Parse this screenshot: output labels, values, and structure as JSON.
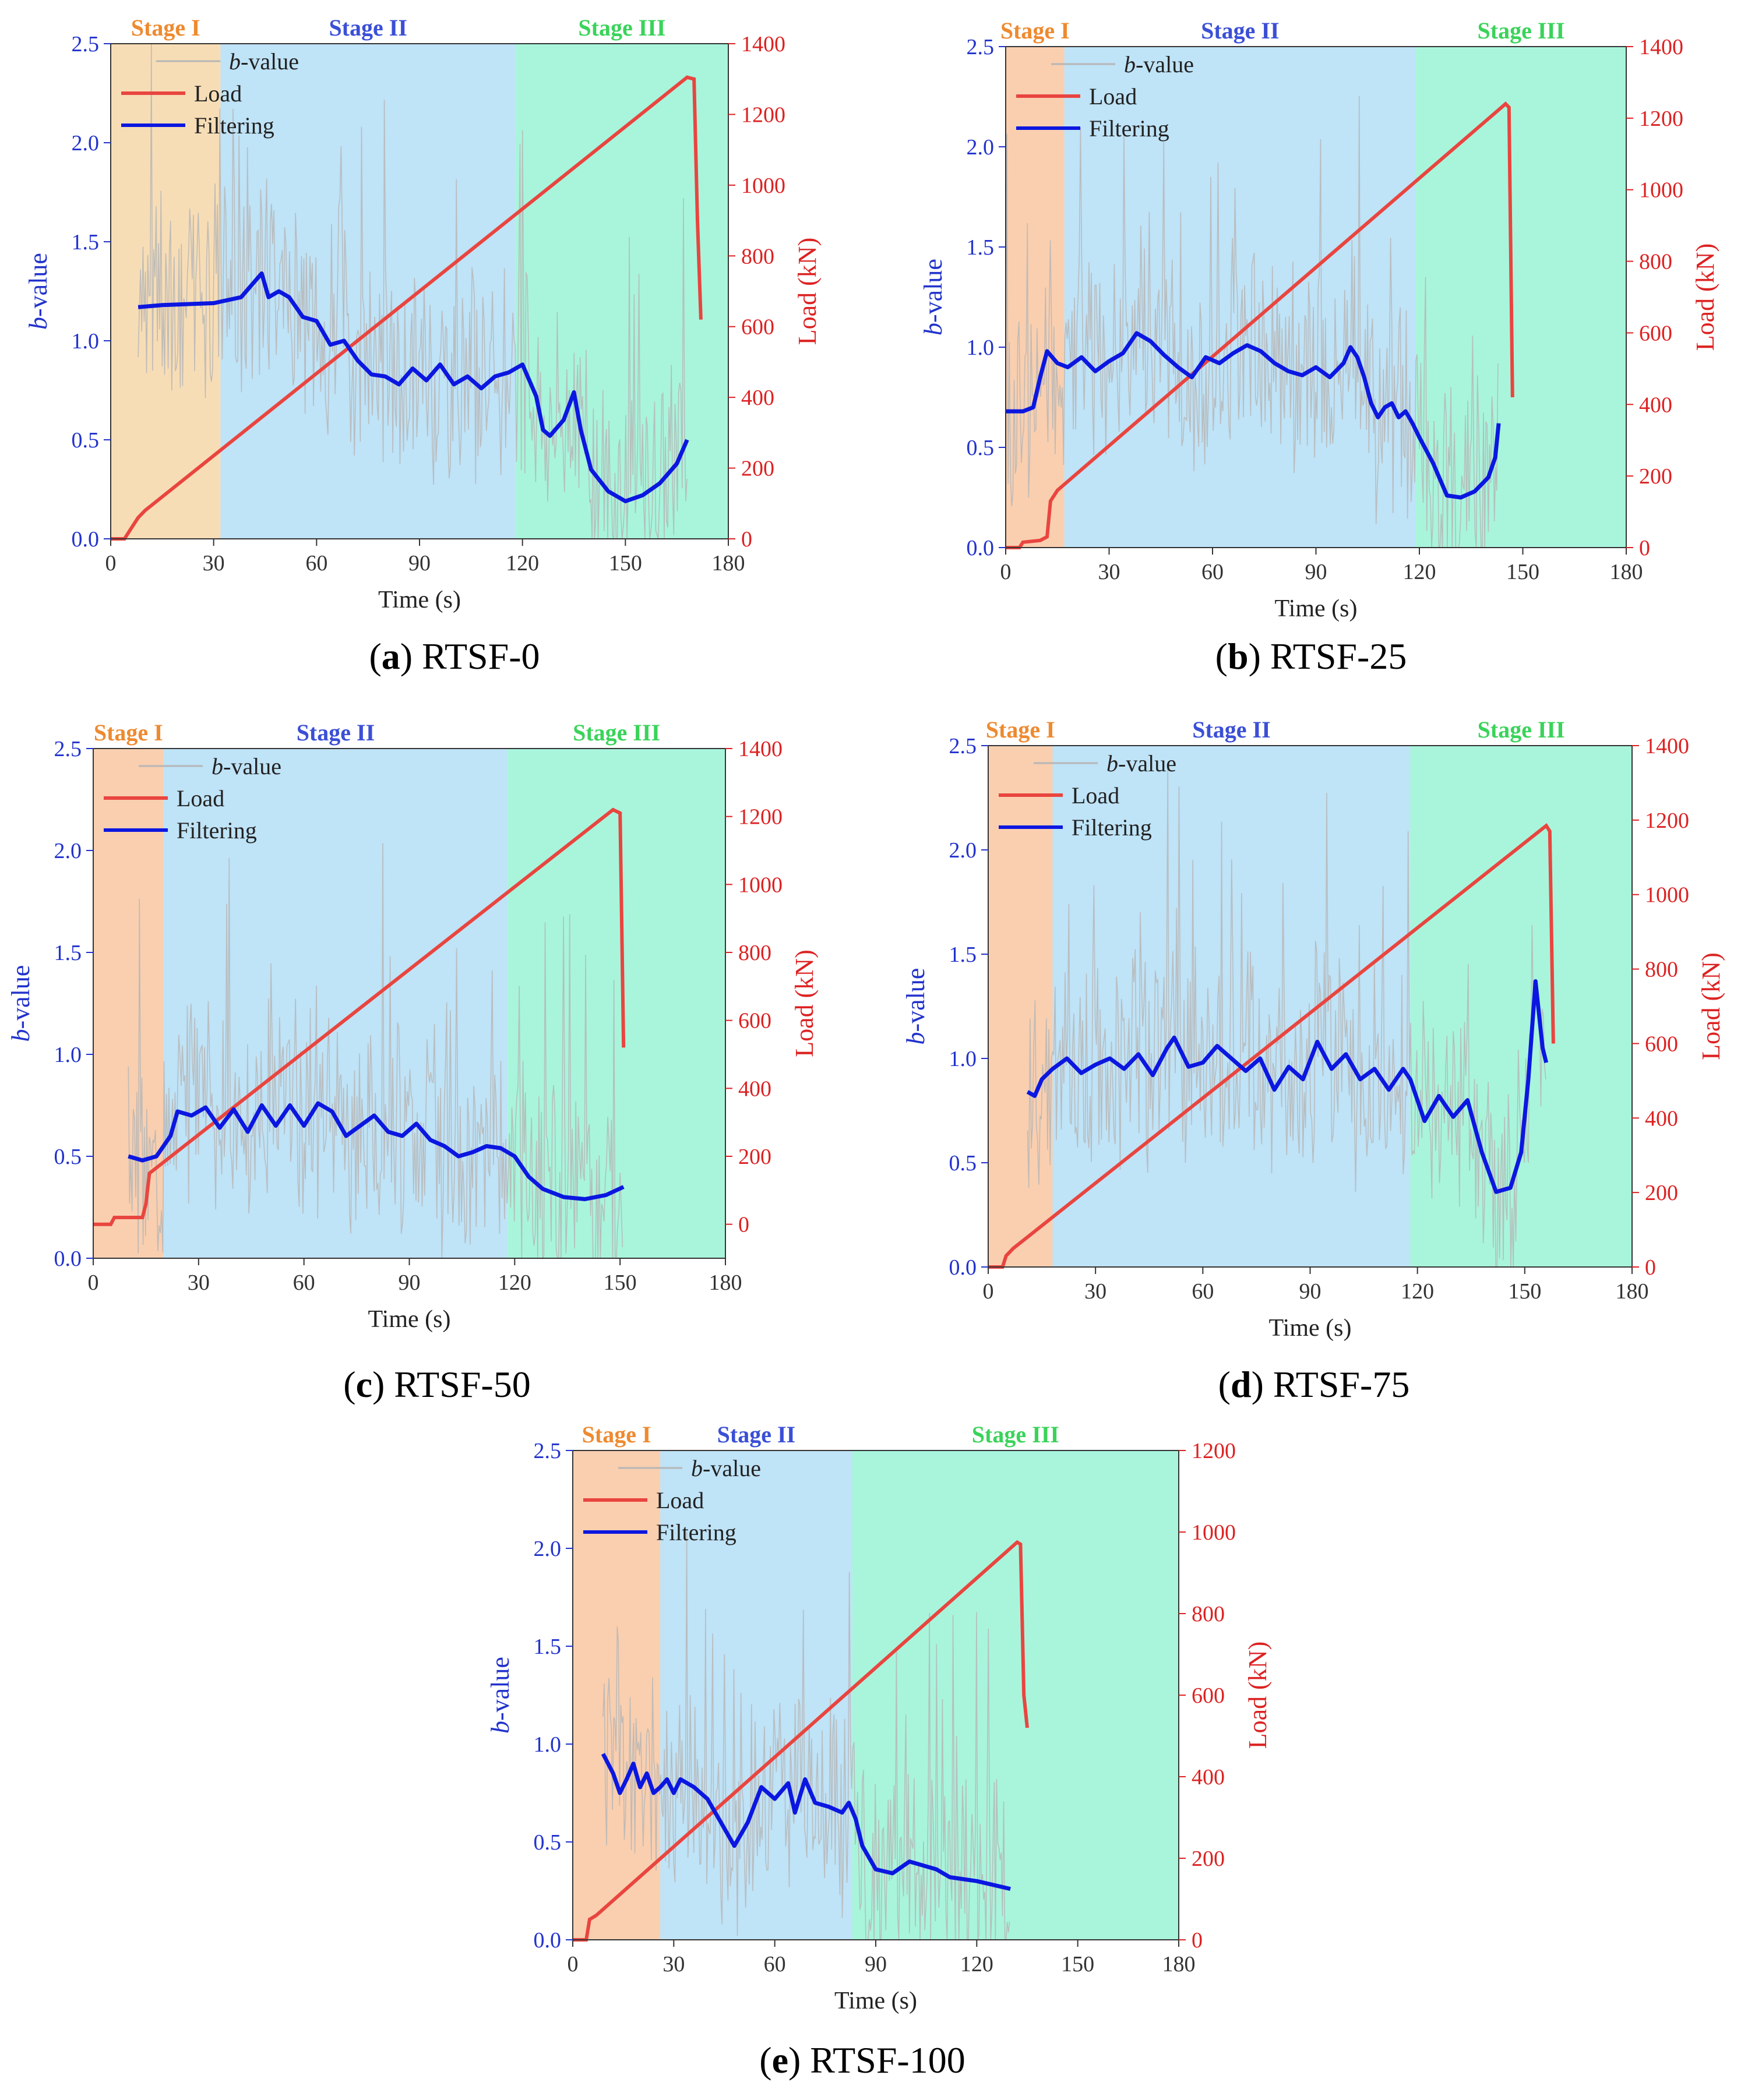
{
  "figure": {
    "legend": {
      "bvalue_italic": "b",
      "bvalue_suffix": "-value",
      "load": "Load",
      "filtering": "Filtering"
    },
    "axes": {
      "x_label": "Time (s)",
      "y_left_italic": "b",
      "y_left_suffix": "-value",
      "y_right_label": "Load (kN)"
    },
    "stage_labels": [
      "Stage I",
      "Stage II",
      "Stage III"
    ],
    "colors": {
      "stage1": "#f7ddb6",
      "stage1_alt": "#f9cfb0",
      "stage2": "#bfe3f7",
      "stage3": "#a8f5dc",
      "stage1_text": "#ee8a30",
      "stage2_text": "#3b4fd6",
      "stage3_text": "#3ad35a",
      "load": "#e9453f",
      "filtering": "#0b17e0",
      "raw": "#b6b6b6",
      "left_axis": "#2233cc",
      "right_axis": "#dd2222"
    }
  },
  "chart_data": [
    {
      "type": "line",
      "id": "a",
      "caption_letter": "a",
      "caption_name": "RTSF-0",
      "xlim": [
        0,
        180
      ],
      "xticks": [
        "0",
        "30",
        "60",
        "90",
        "120",
        "150",
        "180"
      ],
      "ylim_left": [
        0,
        2.5
      ],
      "yticks_left": [
        "0.0",
        "0.5",
        "1.0",
        "1.5",
        "2.0",
        "2.5"
      ],
      "ylim_right": [
        0,
        1400
      ],
      "yticks_right": [
        "0",
        "200",
        "400",
        "600",
        "800",
        "1000",
        "1200",
        "1400"
      ],
      "stages": [
        0,
        32,
        118,
        180
      ],
      "stage1_color": "stage1",
      "load": [
        [
          0,
          0
        ],
        [
          4,
          0
        ],
        [
          6,
          30
        ],
        [
          8,
          60
        ],
        [
          10,
          80
        ],
        [
          168,
          1305
        ],
        [
          170,
          1300
        ],
        [
          171,
          900
        ],
        [
          172,
          620
        ]
      ],
      "filtering": [
        [
          8,
          1.17
        ],
        [
          15,
          1.18
        ],
        [
          30,
          1.19
        ],
        [
          38,
          1.22
        ],
        [
          42,
          1.3
        ],
        [
          44,
          1.34
        ],
        [
          46,
          1.22
        ],
        [
          49,
          1.25
        ],
        [
          52,
          1.22
        ],
        [
          56,
          1.12
        ],
        [
          60,
          1.1
        ],
        [
          64,
          0.98
        ],
        [
          68,
          1.0
        ],
        [
          72,
          0.9
        ],
        [
          76,
          0.83
        ],
        [
          80,
          0.82
        ],
        [
          84,
          0.78
        ],
        [
          88,
          0.86
        ],
        [
          92,
          0.8
        ],
        [
          96,
          0.88
        ],
        [
          100,
          0.78
        ],
        [
          104,
          0.82
        ],
        [
          108,
          0.76
        ],
        [
          112,
          0.82
        ],
        [
          116,
          0.84
        ],
        [
          120,
          0.88
        ],
        [
          124,
          0.72
        ],
        [
          126,
          0.55
        ],
        [
          128,
          0.52
        ],
        [
          132,
          0.6
        ],
        [
          135,
          0.74
        ],
        [
          137,
          0.55
        ],
        [
          140,
          0.35
        ],
        [
          145,
          0.24
        ],
        [
          150,
          0.19
        ],
        [
          155,
          0.22
        ],
        [
          160,
          0.28
        ],
        [
          165,
          0.38
        ],
        [
          168,
          0.5
        ]
      ],
      "raw_range": [
        8,
        168
      ]
    },
    {
      "type": "line",
      "id": "b",
      "caption_letter": "b",
      "caption_name": "RTSF-25",
      "xlim": [
        0,
        180
      ],
      "xticks": [
        "0",
        "30",
        "60",
        "90",
        "120",
        "150",
        "180"
      ],
      "ylim_left": [
        0,
        2.5
      ],
      "yticks_left": [
        "0.0",
        "0.5",
        "1.0",
        "1.5",
        "2.0",
        "2.5"
      ],
      "ylim_right": [
        0,
        1400
      ],
      "yticks_right": [
        "0",
        "200",
        "400",
        "600",
        "800",
        "1000",
        "1200",
        "1400"
      ],
      "stages": [
        0,
        17,
        119,
        180
      ],
      "stage1_color": "stage1_alt",
      "load": [
        [
          0,
          0
        ],
        [
          4,
          0
        ],
        [
          5,
          15
        ],
        [
          10,
          20
        ],
        [
          12,
          30
        ],
        [
          13,
          130
        ],
        [
          15,
          160
        ],
        [
          145,
          1240
        ],
        [
          146,
          1230
        ],
        [
          147,
          420
        ]
      ],
      "filtering": [
        [
          0,
          0.68
        ],
        [
          5,
          0.68
        ],
        [
          8,
          0.7
        ],
        [
          10,
          0.85
        ],
        [
          12,
          0.98
        ],
        [
          15,
          0.92
        ],
        [
          18,
          0.9
        ],
        [
          22,
          0.95
        ],
        [
          26,
          0.88
        ],
        [
          30,
          0.93
        ],
        [
          34,
          0.97
        ],
        [
          38,
          1.07
        ],
        [
          42,
          1.03
        ],
        [
          46,
          0.96
        ],
        [
          50,
          0.9
        ],
        [
          54,
          0.85
        ],
        [
          58,
          0.95
        ],
        [
          62,
          0.92
        ],
        [
          66,
          0.97
        ],
        [
          70,
          1.01
        ],
        [
          74,
          0.98
        ],
        [
          78,
          0.92
        ],
        [
          82,
          0.88
        ],
        [
          86,
          0.86
        ],
        [
          90,
          0.9
        ],
        [
          94,
          0.85
        ],
        [
          98,
          0.92
        ],
        [
          100,
          1.0
        ],
        [
          102,
          0.95
        ],
        [
          104,
          0.85
        ],
        [
          106,
          0.72
        ],
        [
          108,
          0.65
        ],
        [
          110,
          0.7
        ],
        [
          112,
          0.72
        ],
        [
          114,
          0.65
        ],
        [
          116,
          0.68
        ],
        [
          118,
          0.62
        ],
        [
          120,
          0.55
        ],
        [
          124,
          0.42
        ],
        [
          128,
          0.26
        ],
        [
          132,
          0.25
        ],
        [
          136,
          0.28
        ],
        [
          140,
          0.35
        ],
        [
          142,
          0.45
        ],
        [
          143,
          0.62
        ]
      ],
      "raw_range": [
        0,
        143
      ]
    },
    {
      "type": "line",
      "id": "c",
      "caption_letter": "c",
      "caption_name": "RTSF-50",
      "xlim": [
        0,
        180
      ],
      "xticks": [
        "0",
        "30",
        "60",
        "90",
        "120",
        "150",
        "180"
      ],
      "ylim_left": [
        0,
        2.5
      ],
      "yticks_left": [
        "0.0",
        "0.5",
        "1.0",
        "1.5",
        "2.0",
        "2.5"
      ],
      "ylim_right": [
        -100,
        1400
      ],
      "yticks_right": [
        "0",
        "200",
        "400",
        "600",
        "800",
        "1000",
        "1200",
        "1400"
      ],
      "stages": [
        0,
        20,
        118,
        180
      ],
      "stage1_color": "stage1_alt",
      "load": [
        [
          0,
          0
        ],
        [
          5,
          0
        ],
        [
          6,
          20
        ],
        [
          14,
          20
        ],
        [
          15,
          60
        ],
        [
          16,
          150
        ],
        [
          148,
          1220
        ],
        [
          150,
          1210
        ],
        [
          151,
          520
        ]
      ],
      "filtering": [
        [
          10,
          0.5
        ],
        [
          14,
          0.48
        ],
        [
          18,
          0.5
        ],
        [
          22,
          0.6
        ],
        [
          24,
          0.72
        ],
        [
          28,
          0.7
        ],
        [
          32,
          0.74
        ],
        [
          36,
          0.64
        ],
        [
          40,
          0.73
        ],
        [
          44,
          0.62
        ],
        [
          48,
          0.75
        ],
        [
          52,
          0.65
        ],
        [
          56,
          0.75
        ],
        [
          60,
          0.65
        ],
        [
          64,
          0.76
        ],
        [
          68,
          0.72
        ],
        [
          72,
          0.6
        ],
        [
          76,
          0.65
        ],
        [
          80,
          0.7
        ],
        [
          84,
          0.62
        ],
        [
          88,
          0.6
        ],
        [
          92,
          0.66
        ],
        [
          96,
          0.58
        ],
        [
          100,
          0.55
        ],
        [
          104,
          0.5
        ],
        [
          108,
          0.52
        ],
        [
          112,
          0.55
        ],
        [
          116,
          0.54
        ],
        [
          120,
          0.5
        ],
        [
          124,
          0.4
        ],
        [
          128,
          0.34
        ],
        [
          134,
          0.3
        ],
        [
          140,
          0.29
        ],
        [
          146,
          0.31
        ],
        [
          151,
          0.35
        ]
      ],
      "raw_range": [
        10,
        151
      ]
    },
    {
      "type": "line",
      "id": "d",
      "caption_letter": "d",
      "caption_name": "RTSF-75",
      "xlim": [
        0,
        180
      ],
      "xticks": [
        "0",
        "30",
        "60",
        "90",
        "120",
        "150",
        "180"
      ],
      "ylim_left": [
        0,
        2.5
      ],
      "yticks_left": [
        "0.0",
        "0.5",
        "1.0",
        "1.5",
        "2.0",
        "2.5"
      ],
      "ylim_right": [
        0,
        1400
      ],
      "yticks_right": [
        "0",
        "200",
        "400",
        "600",
        "800",
        "1000",
        "1200",
        "1400"
      ],
      "stages": [
        0,
        18,
        118,
        180
      ],
      "stage1_color": "stage1_alt",
      "load": [
        [
          0,
          0
        ],
        [
          4,
          0
        ],
        [
          5,
          30
        ],
        [
          7,
          50
        ],
        [
          156,
          1185
        ],
        [
          157,
          1170
        ],
        [
          158,
          600
        ]
      ],
      "filtering": [
        [
          11,
          0.84
        ],
        [
          13,
          0.82
        ],
        [
          15,
          0.9
        ],
        [
          18,
          0.95
        ],
        [
          22,
          1.0
        ],
        [
          26,
          0.93
        ],
        [
          30,
          0.97
        ],
        [
          34,
          1.0
        ],
        [
          38,
          0.95
        ],
        [
          42,
          1.02
        ],
        [
          46,
          0.92
        ],
        [
          50,
          1.05
        ],
        [
          52,
          1.1
        ],
        [
          56,
          0.96
        ],
        [
          60,
          0.98
        ],
        [
          64,
          1.06
        ],
        [
          68,
          1.0
        ],
        [
          72,
          0.94
        ],
        [
          76,
          1.0
        ],
        [
          80,
          0.85
        ],
        [
          84,
          0.96
        ],
        [
          88,
          0.9
        ],
        [
          92,
          1.08
        ],
        [
          96,
          0.95
        ],
        [
          100,
          1.02
        ],
        [
          104,
          0.9
        ],
        [
          108,
          0.95
        ],
        [
          112,
          0.85
        ],
        [
          116,
          0.95
        ],
        [
          118,
          0.9
        ],
        [
          122,
          0.7
        ],
        [
          126,
          0.82
        ],
        [
          130,
          0.72
        ],
        [
          134,
          0.8
        ],
        [
          138,
          0.55
        ],
        [
          142,
          0.36
        ],
        [
          146,
          0.38
        ],
        [
          149,
          0.55
        ],
        [
          151,
          0.9
        ],
        [
          153,
          1.37
        ],
        [
          155,
          1.05
        ],
        [
          156,
          0.98
        ]
      ],
      "raw_range": [
        11,
        156
      ]
    },
    {
      "type": "line",
      "id": "e",
      "caption_letter": "e",
      "caption_name": "RTSF-100",
      "xlim": [
        0,
        180
      ],
      "xticks": [
        "0",
        "30",
        "60",
        "90",
        "120",
        "150",
        "180"
      ],
      "ylim_left": [
        0,
        2.5
      ],
      "yticks_left": [
        "0.0",
        "0.5",
        "1.0",
        "1.5",
        "2.0",
        "2.5"
      ],
      "ylim_right": [
        0,
        1200
      ],
      "yticks_right": [
        "0",
        "200",
        "400",
        "600",
        "800",
        "1000",
        "1200"
      ],
      "stages": [
        0,
        26,
        83,
        180
      ],
      "stage1_color": "stage1_alt",
      "load": [
        [
          0,
          0
        ],
        [
          4,
          0
        ],
        [
          5,
          50
        ],
        [
          7,
          60
        ],
        [
          132,
          975
        ],
        [
          133,
          970
        ],
        [
          134,
          600
        ],
        [
          135,
          520
        ]
      ],
      "filtering": [
        [
          9,
          0.95
        ],
        [
          12,
          0.85
        ],
        [
          14,
          0.75
        ],
        [
          16,
          0.82
        ],
        [
          18,
          0.9
        ],
        [
          20,
          0.78
        ],
        [
          22,
          0.85
        ],
        [
          24,
          0.75
        ],
        [
          26,
          0.78
        ],
        [
          28,
          0.82
        ],
        [
          30,
          0.75
        ],
        [
          32,
          0.82
        ],
        [
          36,
          0.78
        ],
        [
          40,
          0.72
        ],
        [
          44,
          0.6
        ],
        [
          48,
          0.48
        ],
        [
          52,
          0.6
        ],
        [
          56,
          0.78
        ],
        [
          60,
          0.72
        ],
        [
          64,
          0.8
        ],
        [
          66,
          0.65
        ],
        [
          69,
          0.82
        ],
        [
          72,
          0.7
        ],
        [
          76,
          0.68
        ],
        [
          80,
          0.65
        ],
        [
          82,
          0.7
        ],
        [
          84,
          0.62
        ],
        [
          86,
          0.48
        ],
        [
          90,
          0.36
        ],
        [
          95,
          0.34
        ],
        [
          100,
          0.4
        ],
        [
          104,
          0.38
        ],
        [
          108,
          0.36
        ],
        [
          112,
          0.32
        ],
        [
          120,
          0.3
        ],
        [
          130,
          0.26
        ]
      ],
      "raw_range": [
        9,
        130
      ]
    }
  ]
}
